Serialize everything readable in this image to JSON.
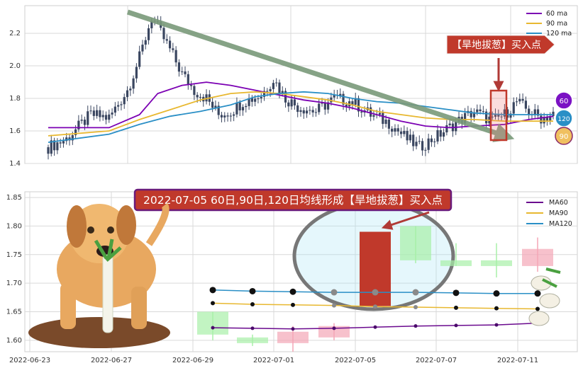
{
  "chart_data": [
    {
      "type": "candlestick",
      "title": "",
      "ylim": [
        1.4,
        2.37
      ],
      "y_ticks": [
        "1.4",
        "1.6",
        "1.8",
        "2.0",
        "2.2"
      ],
      "grid": true,
      "legend_position": "top-right",
      "series": [
        {
          "name": "60 ma",
          "color": "#7b00b3"
        },
        {
          "name": "90 ma",
          "color": "#e8b830"
        },
        {
          "name": "120 ma",
          "color": "#2a8fc6"
        }
      ],
      "callout": "【旱地拔葱】买入点",
      "badges": [
        {
          "label": "60",
          "color": "#7b12c4"
        },
        {
          "label": "120",
          "color": "#2a8fc6"
        },
        {
          "label": "90",
          "color": "#f0c060"
        }
      ],
      "price_path": [
        [
          0,
          1.5
        ],
        [
          6,
          1.55
        ],
        [
          14,
          1.7
        ],
        [
          20,
          1.68
        ],
        [
          26,
          1.85
        ],
        [
          30,
          2.05
        ],
        [
          34,
          2.3
        ],
        [
          37,
          2.2
        ],
        [
          40,
          2.1
        ],
        [
          44,
          1.95
        ],
        [
          48,
          1.85
        ],
        [
          52,
          1.8
        ],
        [
          56,
          1.7
        ],
        [
          60,
          1.72
        ],
        [
          64,
          1.78
        ],
        [
          70,
          1.82
        ],
        [
          74,
          1.92
        ],
        [
          78,
          1.8
        ],
        [
          82,
          1.75
        ],
        [
          88,
          1.72
        ],
        [
          94,
          1.8
        ],
        [
          100,
          1.78
        ],
        [
          106,
          1.7
        ],
        [
          112,
          1.65
        ],
        [
          118,
          1.55
        ],
        [
          122,
          1.5
        ],
        [
          128,
          1.57
        ],
        [
          134,
          1.65
        ],
        [
          140,
          1.72
        ],
        [
          146,
          1.66
        ],
        [
          150,
          1.7
        ],
        [
          154,
          1.78
        ],
        [
          158,
          1.72
        ],
        [
          162,
          1.68
        ],
        [
          166,
          1.7
        ]
      ],
      "ma60": [
        [
          0,
          1.62
        ],
        [
          20,
          1.62
        ],
        [
          30,
          1.7
        ],
        [
          36,
          1.83
        ],
        [
          44,
          1.88
        ],
        [
          52,
          1.9
        ],
        [
          60,
          1.88
        ],
        [
          68,
          1.85
        ],
        [
          76,
          1.82
        ],
        [
          84,
          1.79
        ],
        [
          92,
          1.77
        ],
        [
          100,
          1.74
        ],
        [
          108,
          1.7
        ],
        [
          116,
          1.66
        ],
        [
          124,
          1.63
        ],
        [
          132,
          1.62
        ],
        [
          140,
          1.63
        ],
        [
          150,
          1.64
        ],
        [
          158,
          1.67
        ],
        [
          166,
          1.69
        ]
      ],
      "ma90": [
        [
          0,
          1.57
        ],
        [
          20,
          1.6
        ],
        [
          30,
          1.67
        ],
        [
          40,
          1.73
        ],
        [
          50,
          1.79
        ],
        [
          60,
          1.83
        ],
        [
          68,
          1.84
        ],
        [
          76,
          1.83
        ],
        [
          84,
          1.81
        ],
        [
          92,
          1.79
        ],
        [
          100,
          1.76
        ],
        [
          108,
          1.72
        ],
        [
          116,
          1.7
        ],
        [
          124,
          1.68
        ],
        [
          132,
          1.67
        ],
        [
          140,
          1.67
        ],
        [
          150,
          1.66
        ],
        [
          158,
          1.66
        ],
        [
          166,
          1.66
        ]
      ],
      "ma120": [
        [
          0,
          1.53
        ],
        [
          20,
          1.58
        ],
        [
          30,
          1.64
        ],
        [
          40,
          1.69
        ],
        [
          50,
          1.72
        ],
        [
          60,
          1.76
        ],
        [
          68,
          1.81
        ],
        [
          76,
          1.83
        ],
        [
          84,
          1.84
        ],
        [
          92,
          1.83
        ],
        [
          100,
          1.8
        ],
        [
          108,
          1.78
        ],
        [
          116,
          1.77
        ],
        [
          124,
          1.75
        ],
        [
          132,
          1.73
        ],
        [
          140,
          1.71
        ],
        [
          150,
          1.7
        ],
        [
          158,
          1.7
        ],
        [
          166,
          1.7
        ]
      ]
    },
    {
      "type": "candlestick",
      "title": "2022-07-05 60日,90日,120日均线形成【旱地拔葱】买入点",
      "x_ticks": [
        "2022-06-23",
        "2022-06-27",
        "2022-06-29",
        "2022-07-01",
        "2022-07-05",
        "2022-07-07",
        "2022-07-11"
      ],
      "y_ticks": [
        "1.60",
        "1.65",
        "1.70",
        "1.75",
        "1.80",
        "1.85"
      ],
      "ylim": [
        1.58,
        1.86
      ],
      "grid": true,
      "legend_position": "top-right",
      "series": [
        {
          "name": "MA60",
          "color": "#6a0a8e"
        },
        {
          "name": "MA90",
          "color": "#e8b830"
        },
        {
          "name": "MA120",
          "color": "#2a8fc6"
        }
      ],
      "candles": [
        {
          "o": 1.61,
          "c": 1.65,
          "h": 1.65,
          "l": 1.6,
          "up": true
        },
        {
          "o": 1.605,
          "c": 1.595,
          "h": 1.61,
          "l": 1.59,
          "up": true
        },
        {
          "o": 1.615,
          "c": 1.595,
          "h": 1.625,
          "l": 1.58,
          "up": false
        },
        {
          "o": 1.625,
          "c": 1.605,
          "h": 1.63,
          "l": 1.6,
          "up": false
        },
        {
          "o": 1.66,
          "c": 1.79,
          "h": 1.79,
          "l": 1.655,
          "up": false
        },
        {
          "o": 1.8,
          "c": 1.74,
          "h": 1.8,
          "l": 1.735,
          "up": true
        },
        {
          "o": 1.74,
          "c": 1.73,
          "h": 1.77,
          "l": 1.73,
          "up": true
        },
        {
          "o": 1.74,
          "c": 1.73,
          "h": 1.77,
          "l": 1.71,
          "up": true
        },
        {
          "o": 1.76,
          "c": 1.73,
          "h": 1.78,
          "l": 1.72,
          "up": false
        }
      ],
      "ma60": [
        1.622,
        1.621,
        1.62,
        1.621,
        1.623,
        1.625,
        1.626,
        1.627,
        1.63
      ],
      "ma90": [
        1.665,
        1.663,
        1.662,
        1.661,
        1.659,
        1.658,
        1.657,
        1.656,
        1.655
      ],
      "ma120": [
        1.688,
        1.686,
        1.685,
        1.684,
        1.684,
        1.684,
        1.683,
        1.682,
        1.682
      ]
    }
  ]
}
